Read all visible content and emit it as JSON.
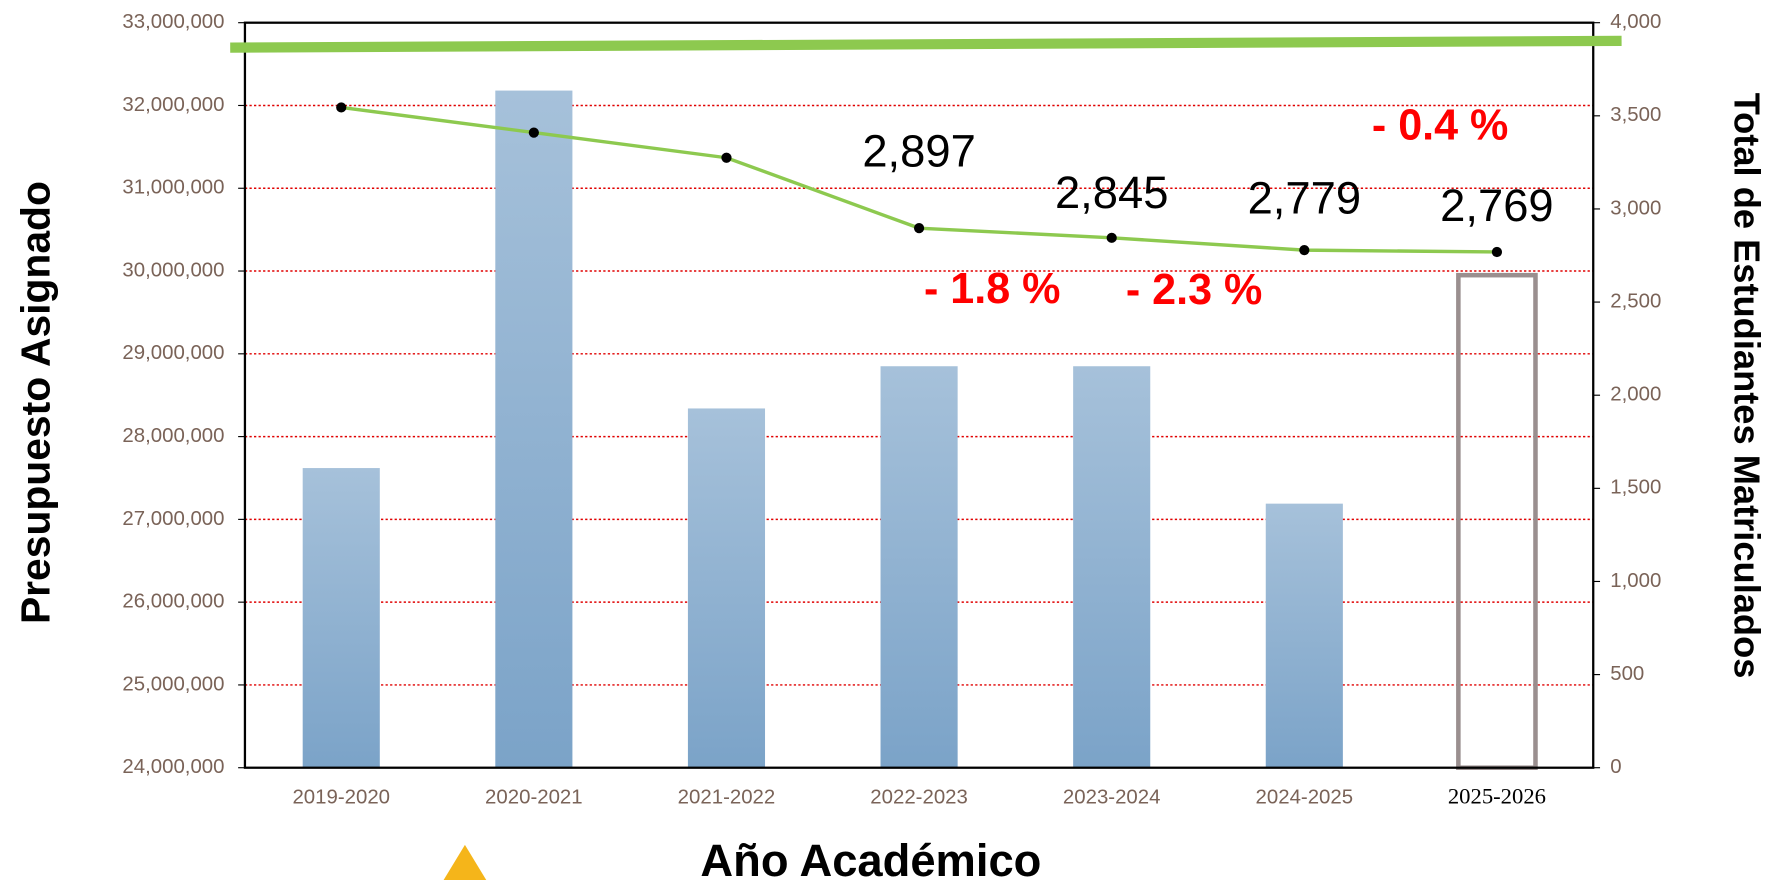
{
  "chart_data": {
    "type": "bar_line",
    "categories": [
      "2019-2020",
      "2020-2021",
      "2021-2022",
      "2022-2023",
      "2023-2024",
      "2024-2025",
      "2025-2026"
    ],
    "bar_series": {
      "color": "#8fb1d3",
      "values": [
        27620000,
        32180000,
        28340000,
        28850000,
        28850000,
        27190000,
        29950000
      ],
      "outlined": [
        false,
        false,
        false,
        false,
        false,
        false,
        true
      ],
      "outline_color": "#9a8f8f"
    },
    "line_series": {
      "color": "#8dc94f",
      "axis": "y2",
      "values": [
        3545,
        3410,
        3275,
        2897,
        2845,
        2779,
        2769
      ],
      "value_labels": [
        null,
        null,
        null,
        "2,897",
        "2,845",
        "2,779",
        "2,769"
      ]
    },
    "y_label": "Presupuesto Asignado",
    "y2_label": "Total de Estudiantes Matriculados",
    "x_label": "Año Académico",
    "annotations": [
      "- 1.8 %",
      "- 2.3 %",
      "- 0.4 %"
    ],
    "annotation_color": "#ff0000",
    "ylim": [
      24000000,
      33000000
    ],
    "yticks": [
      {
        "value": 24000000,
        "label": "24,000,000"
      },
      {
        "value": 25000000,
        "label": "25,000,000"
      },
      {
        "value": 26000000,
        "label": "26,000,000"
      },
      {
        "value": 27000000,
        "label": "27,000,000"
      },
      {
        "value": 28000000,
        "label": "28,000,000"
      },
      {
        "value": 29000000,
        "label": "29,000,000"
      },
      {
        "value": 30000000,
        "label": "30,000,000"
      },
      {
        "value": 31000000,
        "label": "31,000,000"
      },
      {
        "value": 32000000,
        "label": "32,000,000"
      },
      {
        "value": 33000000,
        "label": "33,000,000"
      }
    ],
    "y2lim": [
      0,
      4000
    ],
    "y2ticks": [
      0,
      500,
      {
        "value": 1000,
        "label": "1,000"
      },
      {
        "value": 1500,
        "label": "1,500"
      },
      {
        "value": 2000,
        "label": "2,000"
      },
      {
        "value": 2500,
        "label": "2,500"
      },
      {
        "value": 3000,
        "label": "3,000"
      },
      {
        "value": 3500,
        "label": "3,500"
      },
      {
        "value": 4000,
        "label": "4,000"
      }
    ],
    "grid": true,
    "grid_color": "#e00000"
  }
}
